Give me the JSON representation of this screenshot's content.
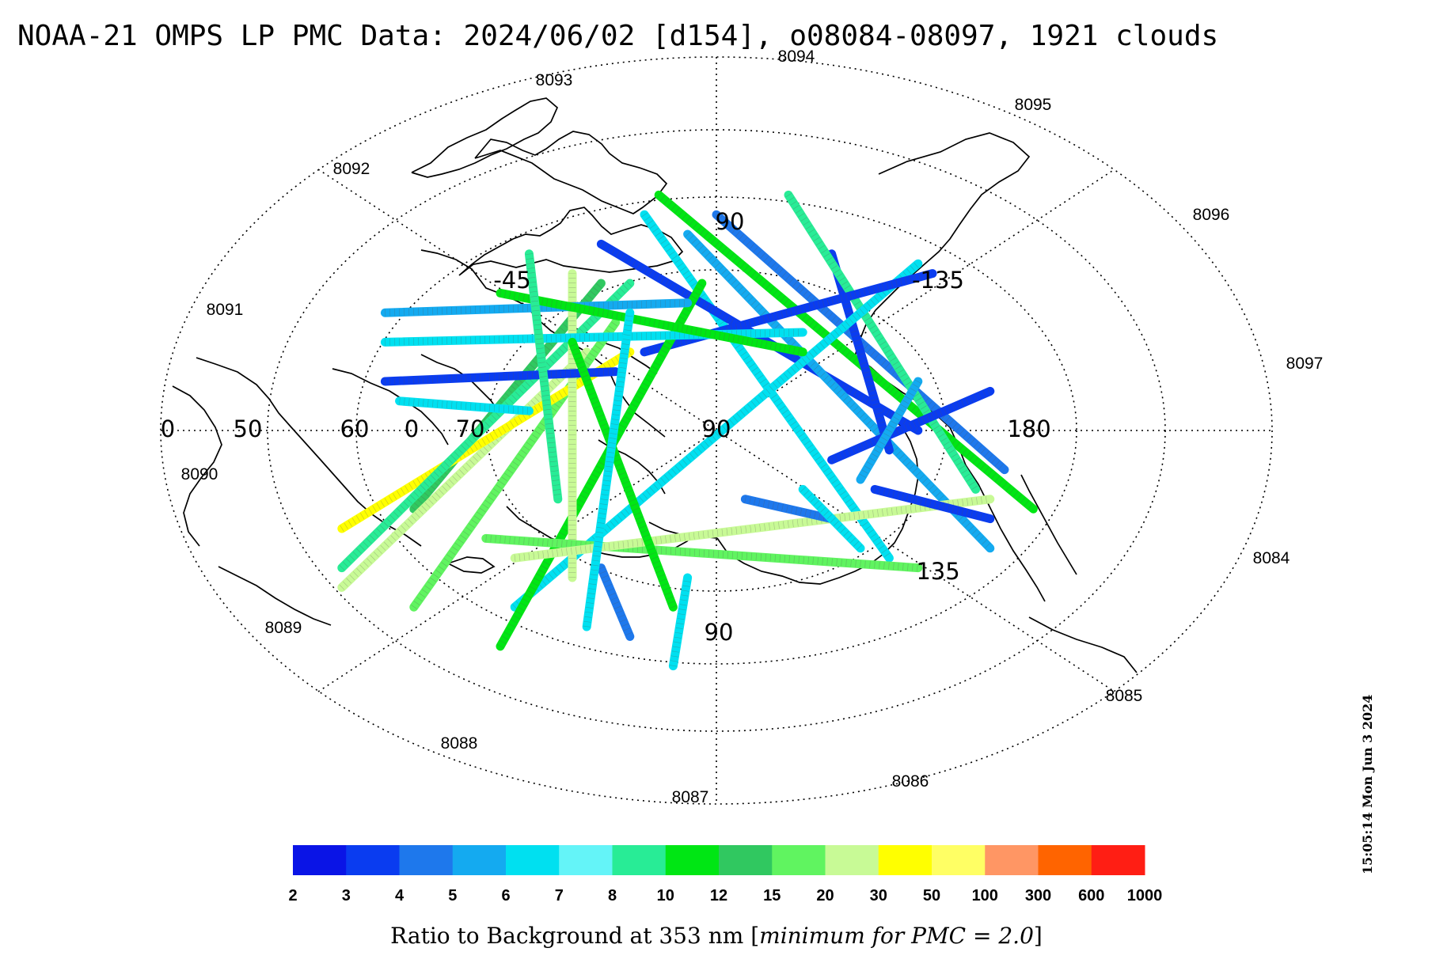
{
  "chart_data": {
    "type": "scatter",
    "title": "NOAA-21 OMPS LP PMC Data: 2024/06/02 [d154], o08084-08097, 1921 clouds",
    "projection": "north polar stereographic",
    "orbit_labels": [
      "8084",
      "8085",
      "8086",
      "8087",
      "8088",
      "8089",
      "8090",
      "8091",
      "8092",
      "8093",
      "8094",
      "8095",
      "8096",
      "8097"
    ],
    "grid_labels": {
      "latitude": [
        "0",
        "50",
        "60",
        "0",
        "70",
        "90"
      ],
      "longitude": [
        "90",
        "-45",
        "-135",
        "180",
        "135",
        "90"
      ]
    },
    "colorbar": {
      "ticks": [
        "2",
        "3",
        "4",
        "5",
        "6",
        "7",
        "8",
        "10",
        "12",
        "15",
        "20",
        "30",
        "50",
        "100",
        "300",
        "600",
        "1000"
      ],
      "colors": [
        "#0a14e6",
        "#0a3cf0",
        "#1e78ec",
        "#14aaf0",
        "#00e0f0",
        "#64f4f8",
        "#28ec96",
        "#00e614",
        "#30c860",
        "#60f460",
        "#c8fa96",
        "#ffff00",
        "#ffff64",
        "#ff9664",
        "#ff6400",
        "#ff1e14"
      ],
      "title": "Ratio to Background at 353 nm ",
      "title_italic": "minimum for PMC = 2.0"
    },
    "cloud_count": 1921,
    "date": "2024/06/02",
    "day_of_year": "d154",
    "orbit_range": "o08084-08097",
    "tracks": [
      {
        "ratio": 6,
        "seg": [
          [
            -5,
            22
          ],
          [
            12,
            -13
          ]
        ]
      },
      {
        "ratio": 4,
        "seg": [
          [
            0,
            22
          ],
          [
            20,
            -4
          ]
        ]
      },
      {
        "ratio": 3,
        "seg": [
          [
            -8,
            19
          ],
          [
            14,
            0
          ]
        ]
      },
      {
        "ratio": 10,
        "seg": [
          [
            -4,
            24
          ],
          [
            22,
            -8
          ]
        ]
      },
      {
        "ratio": 5,
        "seg": [
          [
            -2,
            20
          ],
          [
            19,
            -12
          ]
        ]
      },
      {
        "ratio": 3,
        "seg": [
          [
            8,
            18
          ],
          [
            12,
            -2
          ]
        ]
      },
      {
        "ratio": 8,
        "seg": [
          [
            5,
            24
          ],
          [
            18,
            -6
          ]
        ]
      },
      {
        "ratio": 6,
        "seg": [
          [
            -14,
            -18
          ],
          [
            14,
            17
          ]
        ]
      },
      {
        "ratio": 3,
        "seg": [
          [
            -5,
            8
          ],
          [
            15,
            16
          ]
        ]
      },
      {
        "ratio": 12,
        "seg": [
          [
            -21,
            -8
          ],
          [
            -8,
            15
          ]
        ]
      },
      {
        "ratio": 20,
        "seg": [
          [
            -26,
            -16
          ],
          [
            -9,
            8
          ]
        ]
      },
      {
        "ratio": 15,
        "seg": [
          [
            -21,
            -18
          ],
          [
            -7,
            11
          ]
        ]
      },
      {
        "ratio": 30,
        "seg": [
          [
            -26,
            -10
          ],
          [
            -6,
            8
          ]
        ]
      },
      {
        "ratio": 8,
        "seg": [
          [
            -26,
            -14
          ],
          [
            -6,
            15
          ]
        ]
      },
      {
        "ratio": 10,
        "seg": [
          [
            -15,
            -22
          ],
          [
            -1,
            15
          ]
        ]
      },
      {
        "ratio": 20,
        "seg": [
          [
            -10,
            -15
          ],
          [
            -10,
            16
          ]
        ]
      },
      {
        "ratio": 6,
        "seg": [
          [
            -23,
            9
          ],
          [
            6,
            10
          ]
        ]
      },
      {
        "ratio": 3,
        "seg": [
          [
            -23,
            5
          ],
          [
            -7,
            6
          ]
        ]
      },
      {
        "ratio": 5,
        "seg": [
          [
            -23,
            12
          ],
          [
            -2,
            13
          ]
        ]
      },
      {
        "ratio": 10,
        "seg": [
          [
            -15,
            14
          ],
          [
            6,
            8
          ]
        ]
      },
      {
        "ratio": 6,
        "seg": [
          [
            -22,
            3
          ],
          [
            -13,
            2
          ]
        ]
      },
      {
        "ratio": 4,
        "seg": [
          [
            -8,
            -14
          ],
          [
            -6,
            -21
          ]
        ]
      },
      {
        "ratio": 6,
        "seg": [
          [
            -3,
            -24
          ],
          [
            -2,
            -15
          ]
        ]
      },
      {
        "ratio": 15,
        "seg": [
          [
            -16,
            -11
          ],
          [
            14,
            -14
          ]
        ]
      },
      {
        "ratio": 20,
        "seg": [
          [
            -14,
            -13
          ],
          [
            19,
            -7
          ]
        ]
      },
      {
        "ratio": 3,
        "seg": [
          [
            11,
            -6
          ],
          [
            19,
            -9
          ]
        ]
      },
      {
        "ratio": 4,
        "seg": [
          [
            2,
            -7
          ],
          [
            8,
            -9
          ]
        ]
      },
      {
        "ratio": 6,
        "seg": [
          [
            6,
            -6
          ],
          [
            10,
            -12
          ]
        ]
      },
      {
        "ratio": 3,
        "seg": [
          [
            8,
            -3
          ],
          [
            19,
            4
          ]
        ]
      },
      {
        "ratio": 5,
        "seg": [
          [
            14,
            5
          ],
          [
            10,
            -5
          ]
        ]
      },
      {
        "ratio": 8,
        "seg": [
          [
            -13,
            18
          ],
          [
            -11,
            -7
          ]
        ]
      },
      {
        "ratio": 10,
        "seg": [
          [
            -3,
            -18
          ],
          [
            -10,
            9
          ]
        ]
      },
      {
        "ratio": 6,
        "seg": [
          [
            -9,
            -20
          ],
          [
            -6,
            12
          ]
        ]
      }
    ]
  },
  "timestamp": "15:05:14 Mon Jun  3 2024"
}
